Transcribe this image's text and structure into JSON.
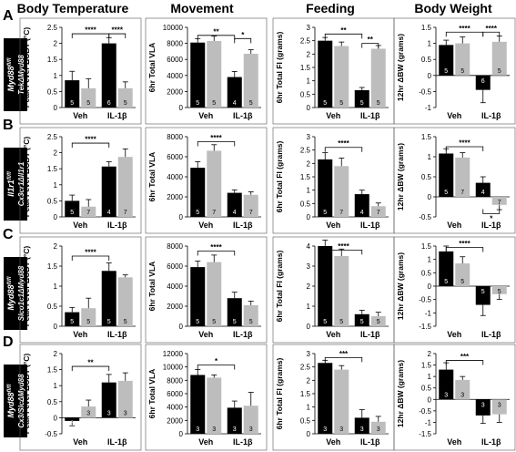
{
  "columns": [
    "Body Temperature",
    "Movement",
    "Feeding",
    "Body Weight"
  ],
  "rows": [
    {
      "letter": "A",
      "genotype": "Myd88",
      "genotype_sup": "fl/fl",
      "driver": "TekΔMyd88"
    },
    {
      "letter": "B",
      "genotype": "Il1r1",
      "genotype_sup": "fl/fl",
      "driver": "Cx3cr1ΔIl1r1"
    },
    {
      "letter": "C",
      "genotype": "Myd88",
      "genotype_sup": "fl/fl",
      "driver": "Slco1c1ΔMyd88"
    },
    {
      "letter": "D",
      "genotype": "Myd88",
      "genotype_sup": "fl/fl",
      "driver": "Cx3/SlcΔMyd88"
    }
  ],
  "colors": {
    "control": "#000000",
    "knockout": "#bdbdbd"
  },
  "chart_data": [
    {
      "id": "A1",
      "type": "bar",
      "ylabel": "Peak Fever ΔCBT (°C)",
      "categories": [
        "Veh",
        "IL-1β"
      ],
      "yticks": [
        0,
        0.5,
        1,
        1.5,
        2,
        2.5
      ],
      "ytick_labels": [
        "0",
        "0.5",
        "1",
        "1.5",
        "2",
        "2.5"
      ],
      "ylim": [
        0,
        2.5
      ],
      "series": [
        {
          "values": [
            0.85,
            2.0
          ],
          "err": [
            0.28,
            0.18
          ],
          "n": [
            "5",
            "6"
          ]
        },
        {
          "values": [
            0.6,
            0.6
          ],
          "err": [
            0.3,
            0.2
          ],
          "n": [
            "5",
            "5"
          ]
        }
      ],
      "sig": [
        {
          "text": "****",
          "x1": "0a",
          "x2": "1a",
          "y": 2.3
        },
        {
          "text": "****",
          "x1": "1a",
          "x2": "1b",
          "y": 2.3
        }
      ]
    },
    {
      "id": "A2",
      "type": "bar",
      "ylabel": "6hr Total VLA",
      "categories": [
        "Veh",
        "IL-1β"
      ],
      "yticks": [
        0,
        2000,
        4000,
        6000,
        8000,
        10000
      ],
      "ytick_labels": [
        "0",
        "2000",
        "4000",
        "6000",
        "8000",
        "10000"
      ],
      "ylim": [
        0,
        10000
      ],
      "series": [
        {
          "values": [
            8100,
            3800
          ],
          "err": [
            500,
            700
          ],
          "n": [
            "5",
            "4"
          ]
        },
        {
          "values": [
            8300,
            6700
          ],
          "err": [
            600,
            500
          ],
          "n": [
            "5",
            "5"
          ]
        }
      ],
      "sig": [
        {
          "text": "**",
          "x1": "0a",
          "x2": "1a",
          "y": 9000
        },
        {
          "text": "*",
          "x1": "1a",
          "x2": "1b",
          "y": 8600
        }
      ]
    },
    {
      "id": "A3",
      "type": "bar",
      "ylabel": "6hr Total FI (grams)",
      "categories": [
        "Veh",
        "IL-1β"
      ],
      "yticks": [
        0,
        0.5,
        1,
        1.5,
        2,
        2.5,
        3
      ],
      "ytick_labels": [
        "0",
        "0.5",
        "1",
        "1.5",
        "2",
        "2.5",
        "3"
      ],
      "ylim": [
        0,
        3
      ],
      "series": [
        {
          "values": [
            2.5,
            0.65
          ],
          "err": [
            0.12,
            0.1
          ],
          "n": [
            "5",
            "5"
          ]
        },
        {
          "values": [
            2.3,
            2.2
          ],
          "err": [
            0.15,
            0.12
          ],
          "n": [
            "5",
            "5"
          ]
        }
      ],
      "sig": [
        {
          "text": "**",
          "x1": "0a",
          "x2": "1a",
          "y": 2.75
        },
        {
          "text": "**",
          "x1": "1a",
          "x2": "1b",
          "y": 2.4
        }
      ]
    },
    {
      "id": "A4",
      "type": "bar",
      "ylabel": "12hr ΔBW (grams)",
      "categories": [
        "Veh",
        "IL-1β"
      ],
      "yticks": [
        -1,
        -0.5,
        0,
        0.5,
        1,
        1.5
      ],
      "ytick_labels": [
        "-1",
        "-0.5",
        "0",
        "0.5",
        "1",
        "1.5"
      ],
      "ylim": [
        -1,
        1.5
      ],
      "series": [
        {
          "values": [
            0.95,
            -0.45
          ],
          "err": [
            0.15,
            0.4
          ],
          "n": [
            "5",
            "6"
          ]
        },
        {
          "values": [
            1.0,
            1.05
          ],
          "err": [
            0.2,
            0.18
          ],
          "n": [
            "5",
            "5"
          ]
        }
      ],
      "sig": [
        {
          "text": "****",
          "x1": "0a",
          "x2": "1a",
          "y": 1.35
        },
        {
          "text": "****",
          "x1": "1a",
          "x2": "1b",
          "y": 1.35
        }
      ]
    },
    {
      "id": "B1",
      "type": "bar",
      "ylabel": "Peak Fever ΔCBT (°C)",
      "categories": [
        "Veh",
        "IL-1β"
      ],
      "yticks": [
        0,
        0.5,
        1,
        1.5,
        2,
        2.5
      ],
      "ytick_labels": [
        "0",
        "0.5",
        "1",
        "1.5",
        "2",
        "2.5"
      ],
      "ylim": [
        0,
        2.5
      ],
      "series": [
        {
          "values": [
            0.5,
            1.57
          ],
          "err": [
            0.18,
            0.15
          ],
          "n": [
            "5",
            "4"
          ]
        },
        {
          "values": [
            0.32,
            1.87
          ],
          "err": [
            0.22,
            0.25
          ],
          "n": [
            "7",
            "7"
          ]
        }
      ],
      "sig": [
        {
          "text": "****",
          "x1": "0a",
          "x2": "1a",
          "y": 2.3
        }
      ]
    },
    {
      "id": "B2",
      "type": "bar",
      "ylabel": "6hr Total VLA",
      "categories": [
        "Veh",
        "IL-1β"
      ],
      "yticks": [
        0,
        2000,
        4000,
        6000,
        8000
      ],
      "ytick_labels": [
        "0",
        "2000",
        "4000",
        "6000",
        "8000"
      ],
      "ylim": [
        0,
        8000
      ],
      "series": [
        {
          "values": [
            4900,
            2400
          ],
          "err": [
            600,
            300
          ],
          "n": [
            "5",
            "4"
          ]
        },
        {
          "values": [
            6600,
            2200
          ],
          "err": [
            600,
            300
          ],
          "n": [
            "7",
            "7"
          ]
        }
      ],
      "sig": [
        {
          "text": "****",
          "x1": "0a",
          "x2": "1a",
          "y": 7500
        }
      ]
    },
    {
      "id": "B3",
      "type": "bar",
      "ylabel": "6hr Total FI (grams)",
      "categories": [
        "Veh",
        "IL-1β"
      ],
      "yticks": [
        0,
        0.5,
        1,
        1.5,
        2,
        2.5,
        3
      ],
      "ytick_labels": [
        "0",
        "0.5",
        "1",
        "1.5",
        "2",
        "2.5",
        "3"
      ],
      "ylim": [
        0,
        3
      ],
      "series": [
        {
          "values": [
            2.15,
            0.85
          ],
          "err": [
            0.25,
            0.15
          ],
          "n": [
            "5",
            "4"
          ]
        },
        {
          "values": [
            1.9,
            0.4
          ],
          "err": [
            0.3,
            0.12
          ],
          "n": [
            "7",
            "7"
          ]
        }
      ],
      "sig": [
        {
          "text": "****",
          "x1": "0a",
          "x2": "1a",
          "y": 2.6
        }
      ]
    },
    {
      "id": "B4",
      "type": "bar",
      "ylabel": "12hr ΔBW (grams)",
      "categories": [
        "Veh",
        "IL-1β"
      ],
      "yticks": [
        -0.5,
        0,
        0.5,
        1,
        1.5
      ],
      "ytick_labels": [
        "-0.5",
        "0",
        "0.5",
        "1",
        "1.5"
      ],
      "ylim": [
        -0.5,
        1.5
      ],
      "series": [
        {
          "values": [
            1.08,
            0.35
          ],
          "err": [
            0.12,
            0.15
          ],
          "n": [
            "5",
            "4"
          ]
        },
        {
          "values": [
            0.98,
            -0.2
          ],
          "err": [
            0.12,
            0.12
          ],
          "n": [
            "7",
            "7"
          ]
        }
      ],
      "sig": [
        {
          "text": "****",
          "x1": "0a",
          "x2": "1a",
          "y": 1.25
        },
        {
          "text": "*",
          "x1": "1a",
          "x2": "1b",
          "y": -0.42,
          "below": true
        }
      ]
    },
    {
      "id": "C1",
      "type": "bar",
      "ylabel": "Peak Fever ΔCBT (°C)",
      "categories": [
        "Veh",
        "IL-1β"
      ],
      "yticks": [
        0,
        0.5,
        1,
        1.5,
        2
      ],
      "ytick_labels": [
        "0",
        "0.5",
        "1",
        "1.5",
        "2"
      ],
      "ylim": [
        0,
        2
      ],
      "series": [
        {
          "values": [
            0.35,
            1.38
          ],
          "err": [
            0.12,
            0.2
          ],
          "n": [
            "5",
            "5"
          ]
        },
        {
          "values": [
            0.45,
            1.22
          ],
          "err": [
            0.25,
            0.06
          ],
          "n": [
            "5",
            "5"
          ]
        }
      ],
      "sig": [
        {
          "text": "****",
          "x1": "0a",
          "x2": "1a",
          "y": 1.75
        }
      ]
    },
    {
      "id": "C2",
      "type": "bar",
      "ylabel": "6hr Total VLA",
      "categories": [
        "Veh",
        "IL-1β"
      ],
      "yticks": [
        0,
        2000,
        4000,
        6000,
        8000
      ],
      "ytick_labels": [
        "0",
        "2000",
        "4000",
        "6000",
        "8000"
      ],
      "ylim": [
        0,
        8000
      ],
      "series": [
        {
          "values": [
            5900,
            2800
          ],
          "err": [
            600,
            600
          ],
          "n": [
            "5",
            "5"
          ]
        },
        {
          "values": [
            6400,
            2100
          ],
          "err": [
            700,
            400
          ],
          "n": [
            "5",
            "5"
          ]
        }
      ],
      "sig": [
        {
          "text": "****",
          "x1": "0a",
          "x2": "1a",
          "y": 7500
        }
      ]
    },
    {
      "id": "C3",
      "type": "bar",
      "ylabel": "6hr Total FI (grams)",
      "categories": [
        "Veh",
        "IL-1β"
      ],
      "yticks": [
        0,
        1,
        2,
        3,
        4
      ],
      "ytick_labels": [
        "0",
        "1",
        "2",
        "3",
        "4"
      ],
      "ylim": [
        0,
        4
      ],
      "series": [
        {
          "values": [
            4.0,
            0.6
          ],
          "err": [
            0.3,
            0.2
          ],
          "n": [
            "5",
            "5"
          ]
        },
        {
          "values": [
            3.5,
            0.5
          ],
          "err": [
            0.35,
            0.2
          ],
          "n": [
            "5",
            "5"
          ]
        }
      ],
      "sig": [
        {
          "text": "****",
          "x1": "0a",
          "x2": "1a",
          "y": 3.8
        }
      ]
    },
    {
      "id": "C4",
      "type": "bar",
      "ylabel": "12hr ΔBW (grams)",
      "categories": [
        "Veh",
        "IL-1β"
      ],
      "yticks": [
        -1.5,
        -1,
        -0.5,
        0,
        0.5,
        1,
        1.5
      ],
      "ytick_labels": [
        "-1.5",
        "-1",
        "-0.5",
        "0",
        "0.5",
        "1",
        "1.5"
      ],
      "ylim": [
        -1.5,
        1.5
      ],
      "series": [
        {
          "values": [
            1.3,
            -0.7
          ],
          "err": [
            0.2,
            0.4
          ],
          "n": [
            "5",
            "5"
          ]
        },
        {
          "values": [
            0.85,
            -0.3
          ],
          "err": [
            0.25,
            0.2
          ],
          "n": [
            "5",
            "5"
          ]
        }
      ],
      "sig": [
        {
          "text": "****",
          "x1": "0a",
          "x2": "1a",
          "y": 1.45
        }
      ]
    },
    {
      "id": "D1",
      "type": "bar",
      "ylabel": "Peak Fever ΔCBT (°C)",
      "categories": [
        "Veh",
        "IL-1β"
      ],
      "yticks": [
        -0.5,
        0,
        0.5,
        1,
        1.5,
        2
      ],
      "ytick_labels": [
        "-0.5",
        "0",
        "0.5",
        "1",
        "1.5",
        "2"
      ],
      "ylim": [
        -0.5,
        2
      ],
      "series": [
        {
          "values": [
            -0.1,
            1.1
          ],
          "err": [
            0.15,
            0.25
          ],
          "n": [
            "3",
            "3"
          ]
        },
        {
          "values": [
            0.35,
            1.15
          ],
          "err": [
            0.2,
            0.25
          ],
          "n": [
            "3",
            "3"
          ]
        }
      ],
      "sig": [
        {
          "text": "**",
          "x1": "0a",
          "x2": "1a",
          "y": 1.6
        }
      ]
    },
    {
      "id": "D2",
      "type": "bar",
      "ylabel": "6hr Total VLA",
      "categories": [
        "Veh",
        "IL-1β"
      ],
      "yticks": [
        0,
        2000,
        4000,
        6000,
        8000,
        10000,
        12000
      ],
      "ytick_labels": [
        "0",
        "2000",
        "4000",
        "6000",
        "8000",
        "10000",
        "12000"
      ],
      "ylim": [
        0,
        12000
      ],
      "series": [
        {
          "values": [
            8800,
            3900
          ],
          "err": [
            800,
            1000
          ],
          "n": [
            "3",
            "3"
          ]
        },
        {
          "values": [
            8400,
            4200
          ],
          "err": [
            400,
            2000
          ],
          "n": [
            "3",
            "3"
          ]
        }
      ],
      "sig": [
        {
          "text": "*",
          "x1": "0a",
          "x2": "1a",
          "y": 10300
        }
      ]
    },
    {
      "id": "D3",
      "type": "bar",
      "ylabel": "6hr Total FI (grams)",
      "categories": [
        "Veh",
        "IL-1β"
      ],
      "yticks": [
        0,
        0.5,
        1,
        1.5,
        2,
        2.5,
        3
      ],
      "ytick_labels": [
        "0",
        "0.5",
        "1",
        "1.5",
        "2",
        "2.5",
        "3"
      ],
      "ylim": [
        0,
        3
      ],
      "series": [
        {
          "values": [
            2.65,
            0.6
          ],
          "err": [
            0.1,
            0.3
          ],
          "n": [
            "3",
            "3"
          ]
        },
        {
          "values": [
            2.4,
            0.45
          ],
          "err": [
            0.15,
            0.2
          ],
          "n": [
            "3",
            "3"
          ]
        }
      ],
      "sig": [
        {
          "text": "***",
          "x1": "0a",
          "x2": "1a",
          "y": 2.85
        }
      ]
    },
    {
      "id": "D4",
      "type": "bar",
      "ylabel": "12hr ΔBW (grams)",
      "categories": [
        "Veh",
        "IL-1β"
      ],
      "yticks": [
        -1.5,
        -1,
        -0.5,
        0,
        0.5,
        1,
        1.5,
        2
      ],
      "ytick_labels": [
        "-1.5",
        "-1",
        "-0.5",
        "0",
        "0.5",
        "1",
        "1.5",
        "2"
      ],
      "ylim": [
        -1.5,
        2
      ],
      "series": [
        {
          "values": [
            1.3,
            -0.7
          ],
          "err": [
            0.3,
            0.35
          ],
          "n": [
            "3",
            "3"
          ]
        },
        {
          "values": [
            0.85,
            -0.65
          ],
          "err": [
            0.15,
            0.35
          ],
          "n": [
            "3",
            "3"
          ]
        }
      ],
      "sig": [
        {
          "text": "***",
          "x1": "0a",
          "x2": "1a",
          "y": 1.7
        }
      ]
    }
  ]
}
